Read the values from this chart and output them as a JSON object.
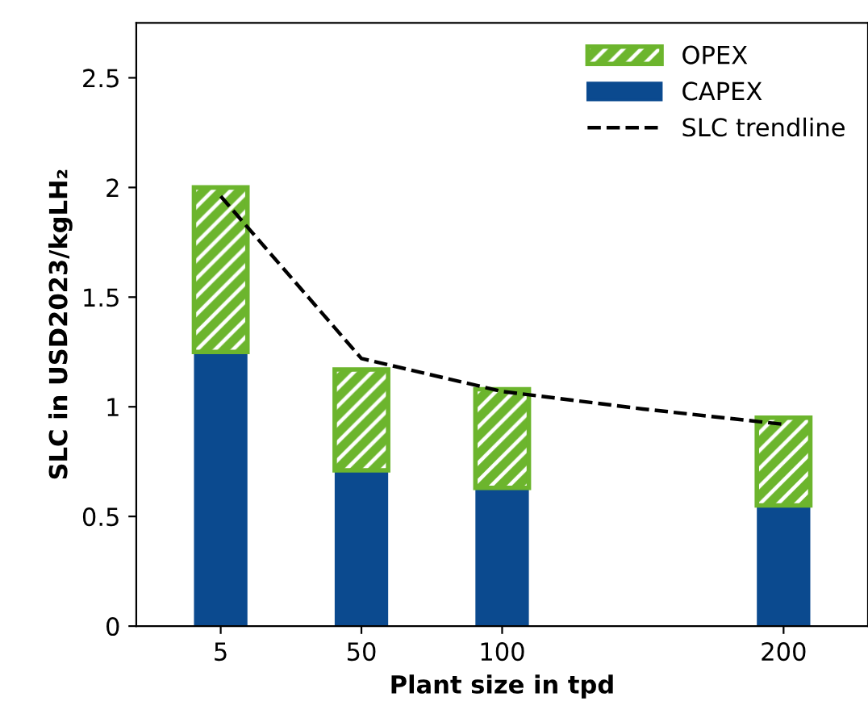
{
  "chart_data": {
    "type": "bar",
    "stacked": true,
    "xlabel": "Plant size in tpd",
    "ylabel": "SLC in USD2023/kgLH₂",
    "categories": [
      "5",
      "50",
      "100",
      null,
      "200"
    ],
    "ylim": [
      0,
      2.75
    ],
    "yticks": [
      0,
      0.5,
      1,
      1.5,
      2,
      2.5
    ],
    "series": [
      {
        "name": "CAPEX",
        "color": "#0b4a8f",
        "values": [
          1.25,
          0.71,
          0.63,
          null,
          0.55
        ]
      },
      {
        "name": "OPEX",
        "color": "#6cb52d",
        "values": [
          0.75,
          0.46,
          0.45,
          null,
          0.4
        ]
      },
      {
        "name": "SLC trendline",
        "type": "line",
        "color": "#000000",
        "line_style": "dashed",
        "values": [
          1.96,
          1.22,
          1.07,
          0.99,
          0.92
        ]
      }
    ],
    "legend": "top right",
    "grid": false
  }
}
